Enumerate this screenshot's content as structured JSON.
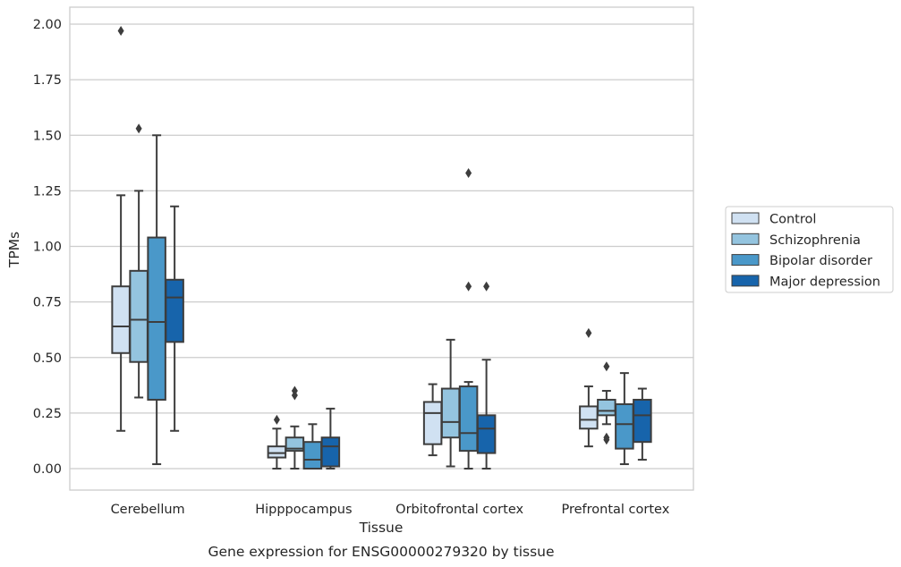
{
  "caption": "Gene expression for ENSG00000279320 by tissue",
  "chart_data": {
    "type": "boxplot",
    "xlabel": "Tissue",
    "ylabel": "TPMs",
    "ylim": [
      -0.1,
      2.07
    ],
    "yticks": [
      "0.00",
      "0.25",
      "0.50",
      "0.75",
      "1.00",
      "1.25",
      "1.50",
      "1.75",
      "2.00"
    ],
    "grid": "horizontal",
    "legend_position": "right",
    "categories": [
      "Cerebellum",
      "Hipppocampus",
      "Orbitofrontal cortex",
      "Prefrontal cortex"
    ],
    "series": [
      {
        "name": "Control",
        "color": "#d0e1f2",
        "boxes": [
          {
            "whislo": 0.17,
            "q1": 0.52,
            "med": 0.64,
            "q3": 0.82,
            "whishi": 1.23,
            "fliers": [
              1.97
            ]
          },
          {
            "whislo": 0.0,
            "q1": 0.05,
            "med": 0.07,
            "q3": 0.1,
            "whishi": 0.18,
            "fliers": [
              0.22
            ]
          },
          {
            "whislo": 0.06,
            "q1": 0.11,
            "med": 0.25,
            "q3": 0.3,
            "whishi": 0.38,
            "fliers": []
          },
          {
            "whislo": 0.1,
            "q1": 0.18,
            "med": 0.22,
            "q3": 0.28,
            "whishi": 0.37,
            "fliers": [
              0.61
            ]
          }
        ]
      },
      {
        "name": "Schizophrenia",
        "color": "#94c4df",
        "boxes": [
          {
            "whislo": 0.32,
            "q1": 0.48,
            "med": 0.67,
            "q3": 0.89,
            "whishi": 1.25,
            "fliers": [
              1.53
            ]
          },
          {
            "whislo": 0.0,
            "q1": 0.08,
            "med": 0.09,
            "q3": 0.14,
            "whishi": 0.19,
            "fliers": [
              0.33,
              0.35
            ]
          },
          {
            "whislo": 0.01,
            "q1": 0.14,
            "med": 0.21,
            "q3": 0.36,
            "whishi": 0.58,
            "fliers": []
          },
          {
            "whislo": 0.2,
            "q1": 0.24,
            "med": 0.26,
            "q3": 0.31,
            "whishi": 0.35,
            "fliers": [
              0.46,
              0.13,
              0.14
            ]
          }
        ]
      },
      {
        "name": "Bipolar disorder",
        "color": "#4a98c9",
        "boxes": [
          {
            "whislo": 0.02,
            "q1": 0.31,
            "med": 0.66,
            "q3": 1.04,
            "whishi": 1.5,
            "fliers": []
          },
          {
            "whislo": 0.0,
            "q1": 0.0,
            "med": 0.04,
            "q3": 0.12,
            "whishi": 0.2,
            "fliers": []
          },
          {
            "whislo": 0.0,
            "q1": 0.08,
            "med": 0.16,
            "q3": 0.37,
            "whishi": 0.39,
            "fliers": [
              0.82,
              1.33
            ]
          },
          {
            "whislo": 0.02,
            "q1": 0.09,
            "med": 0.2,
            "q3": 0.29,
            "whishi": 0.43,
            "fliers": []
          }
        ]
      },
      {
        "name": "Major depression",
        "color": "#1764ab",
        "boxes": [
          {
            "whislo": 0.17,
            "q1": 0.57,
            "med": 0.77,
            "q3": 0.85,
            "whishi": 1.18,
            "fliers": []
          },
          {
            "whislo": 0.0,
            "q1": 0.01,
            "med": 0.1,
            "q3": 0.14,
            "whishi": 0.27,
            "fliers": []
          },
          {
            "whislo": 0.0,
            "q1": 0.07,
            "med": 0.18,
            "q3": 0.24,
            "whishi": 0.49,
            "fliers": [
              0.82
            ]
          },
          {
            "whislo": 0.04,
            "q1": 0.12,
            "med": 0.24,
            "q3": 0.31,
            "whishi": 0.36,
            "fliers": []
          }
        ]
      }
    ]
  }
}
